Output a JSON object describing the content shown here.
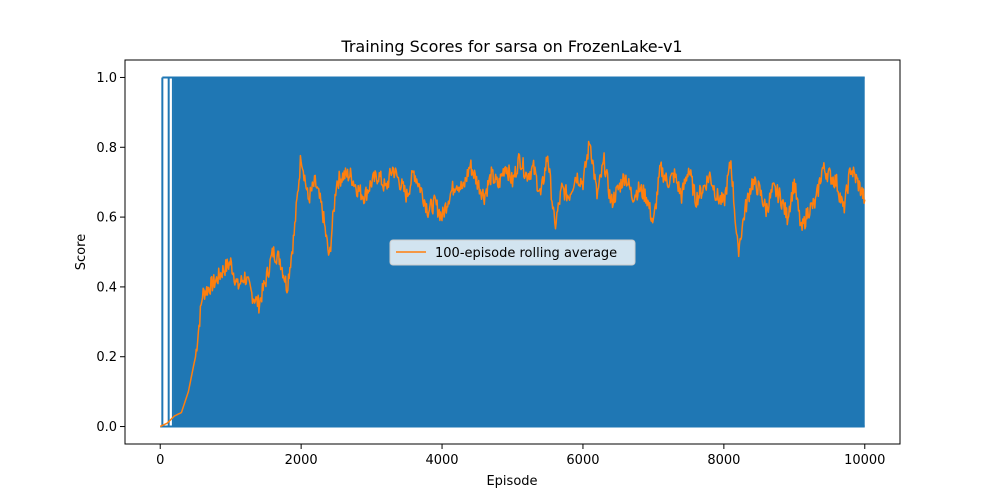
{
  "chart_data": {
    "type": "line",
    "title": "Training Scores for sarsa on FrozenLake-v1",
    "xlabel": "Episode",
    "ylabel": "Score",
    "xlim": [
      -500,
      10500
    ],
    "ylim": [
      -0.05,
      1.05
    ],
    "xticks": [
      0,
      2000,
      4000,
      6000,
      8000,
      10000
    ],
    "yticks": [
      0.0,
      0.2,
      0.4,
      0.6,
      0.8,
      1.0
    ],
    "xtick_labels": [
      "0",
      "2000",
      "4000",
      "6000",
      "8000",
      "10000"
    ],
    "ytick_labels": [
      "0.0",
      "0.2",
      "0.4",
      "0.6",
      "0.8",
      "1.0"
    ],
    "grid": false,
    "legend": {
      "placement": "center",
      "entries": [
        "100-episode rolling average"
      ]
    },
    "series": [
      {
        "kind": "raw-scores",
        "color": "#1f77b4",
        "x_range": [
          0,
          9999
        ],
        "values": [
          0,
          1
        ],
        "early_sparse_successes_x": [
          30,
          120,
          180
        ]
      },
      {
        "name": "100-episode rolling average",
        "color": "#ff7f0e",
        "x": [
          0,
          100,
          200,
          300,
          400,
          500,
          600,
          700,
          800,
          900,
          1000,
          1100,
          1200,
          1300,
          1400,
          1500,
          1600,
          1700,
          1800,
          1900,
          2000,
          2100,
          2200,
          2300,
          2400,
          2500,
          2600,
          2700,
          2800,
          2900,
          3000,
          3100,
          3200,
          3300,
          3400,
          3500,
          3600,
          3700,
          3800,
          3900,
          4000,
          4100,
          4200,
          4300,
          4400,
          4500,
          4600,
          4700,
          4800,
          4900,
          5000,
          5100,
          5200,
          5300,
          5400,
          5500,
          5600,
          5700,
          5800,
          5900,
          6000,
          6100,
          6200,
          6300,
          6400,
          6500,
          6600,
          6700,
          6800,
          6900,
          7000,
          7100,
          7200,
          7300,
          7400,
          7500,
          7600,
          7700,
          7800,
          7900,
          8000,
          8100,
          8200,
          8300,
          8400,
          8500,
          8600,
          8700,
          8800,
          8900,
          9000,
          9100,
          9200,
          9300,
          9400,
          9500,
          9600,
          9700,
          9800,
          9900,
          10000
        ],
        "values": [
          0.0,
          0.01,
          0.03,
          0.04,
          0.1,
          0.2,
          0.38,
          0.4,
          0.42,
          0.45,
          0.47,
          0.4,
          0.43,
          0.38,
          0.35,
          0.42,
          0.5,
          0.48,
          0.4,
          0.55,
          0.78,
          0.65,
          0.7,
          0.62,
          0.48,
          0.7,
          0.72,
          0.72,
          0.68,
          0.66,
          0.7,
          0.72,
          0.68,
          0.74,
          0.7,
          0.66,
          0.73,
          0.68,
          0.62,
          0.64,
          0.6,
          0.66,
          0.7,
          0.68,
          0.75,
          0.7,
          0.66,
          0.72,
          0.69,
          0.75,
          0.7,
          0.77,
          0.72,
          0.74,
          0.66,
          0.78,
          0.57,
          0.68,
          0.66,
          0.72,
          0.7,
          0.82,
          0.66,
          0.76,
          0.64,
          0.68,
          0.72,
          0.66,
          0.68,
          0.66,
          0.58,
          0.74,
          0.7,
          0.72,
          0.66,
          0.74,
          0.65,
          0.68,
          0.72,
          0.66,
          0.64,
          0.76,
          0.5,
          0.62,
          0.7,
          0.68,
          0.62,
          0.68,
          0.66,
          0.6,
          0.7,
          0.56,
          0.62,
          0.64,
          0.74,
          0.72,
          0.7,
          0.62,
          0.74,
          0.7,
          0.65
        ]
      }
    ]
  }
}
